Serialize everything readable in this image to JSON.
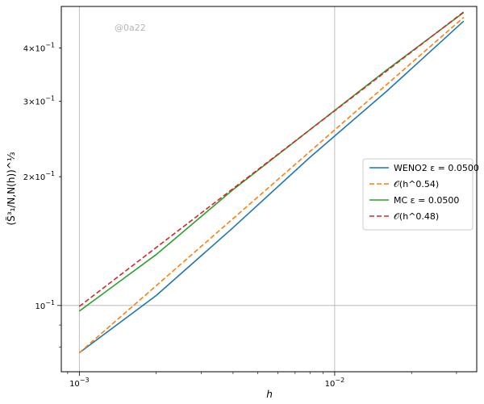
{
  "chart_data": {
    "type": "line",
    "xscale": "log",
    "yscale": "log",
    "xlim": [
      0.00085,
      0.036
    ],
    "ylim": [
      0.07,
      0.5
    ],
    "xlabel": "h",
    "ylabel": "(S̃³₁/N,N(h))^⅓",
    "grid": true,
    "legend_position": "right",
    "watermark": "@0a22",
    "xticks": [
      {
        "value": 0.001,
        "base": "10",
        "exp": "−3"
      },
      {
        "value": 0.01,
        "base": "10",
        "exp": "−2"
      }
    ],
    "yticks": [
      {
        "value": 0.1,
        "label": "10",
        "exp": "−1",
        "mant": ""
      },
      {
        "value": 0.2,
        "label": "10",
        "exp": "−1",
        "mant": "2×"
      },
      {
        "value": 0.3,
        "label": "10",
        "exp": "−1",
        "mant": "3×"
      },
      {
        "value": 0.4,
        "label": "10",
        "exp": "−1",
        "mant": "4×"
      }
    ],
    "series": [
      {
        "name": "WENO2 ε = 0.0500",
        "color": "#1f77b4",
        "dash": "solid",
        "x": [
          0.001,
          0.002,
          0.004,
          0.008,
          0.016,
          0.032
        ],
        "y": [
          0.0775,
          0.1055,
          0.152,
          0.222,
          0.317,
          0.462
        ]
      },
      {
        "name": "𝒪(h^0.54)",
        "color": "#ff7f0e",
        "dash": "dashed",
        "x": [
          0.001,
          0.032
        ],
        "y": [
          0.0775,
          0.4715
        ]
      },
      {
        "name": "MC ε = 0.0500",
        "color": "#2ca02c",
        "dash": "solid",
        "x": [
          0.001,
          0.002,
          0.004,
          0.008,
          0.016,
          0.032
        ],
        "y": [
          0.097,
          0.1315,
          0.1865,
          0.2575,
          0.3555,
          0.484
        ]
      },
      {
        "name": "𝒪(h^0.48)",
        "color": "#d62728",
        "dash": "dashed",
        "x": [
          0.001,
          0.032
        ],
        "y": [
          0.0995,
          0.4855
        ]
      }
    ]
  }
}
